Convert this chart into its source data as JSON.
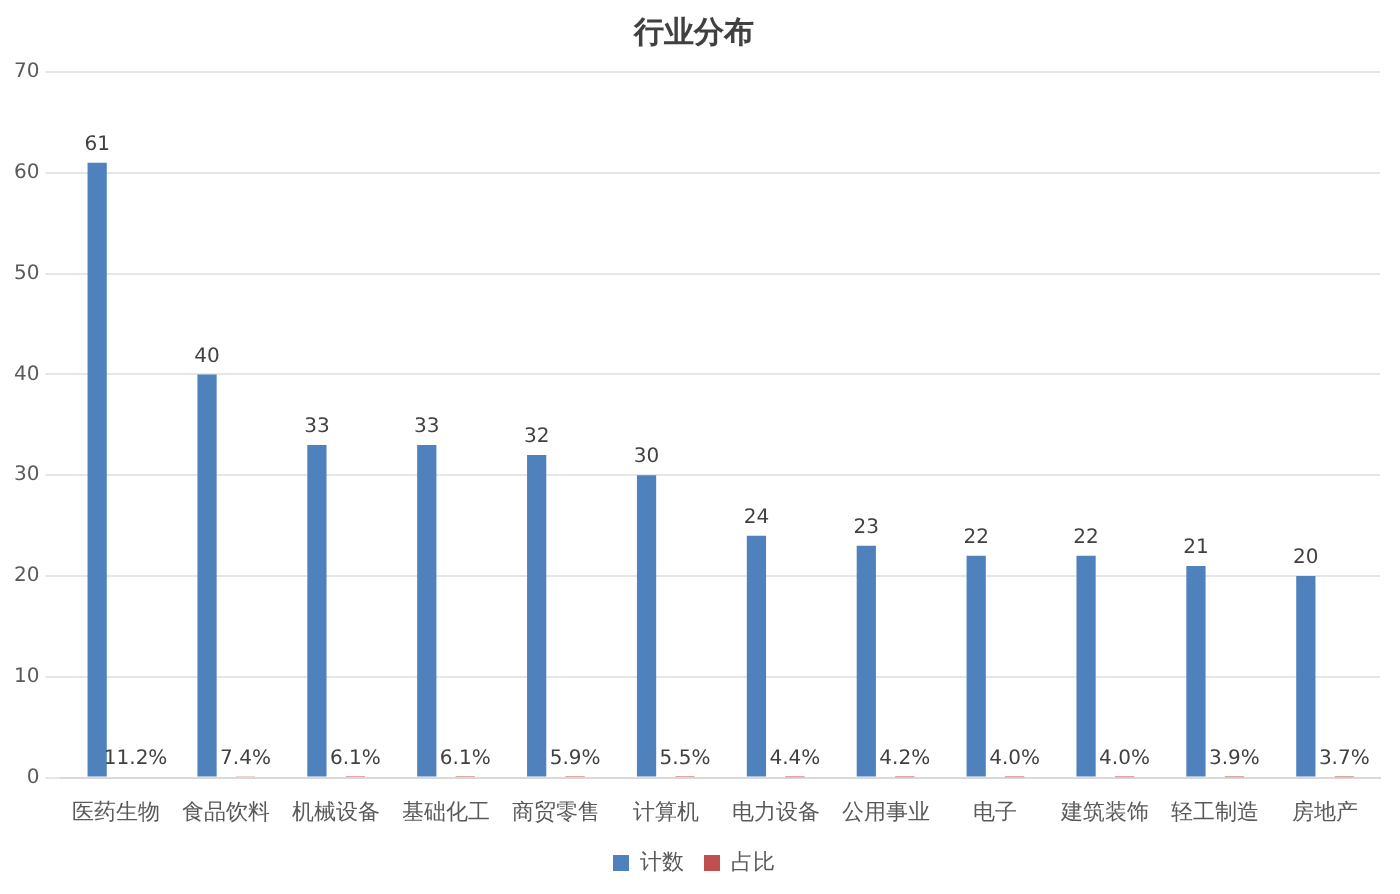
{
  "chart_data": {
    "type": "bar",
    "title": "行业分布",
    "categories": [
      "医药生物",
      "食品饮料",
      "机械设备",
      "基础化工",
      "商贸零售",
      "计算机",
      "电力设备",
      "公用事业",
      "电子",
      "建筑装饰",
      "轻工制造",
      "房地产"
    ],
    "series": [
      {
        "name": "计数",
        "color": "#4f81bd",
        "values": [
          61,
          40,
          33,
          33,
          32,
          30,
          24,
          23,
          22,
          22,
          21,
          20
        ],
        "value_labels": [
          "61",
          "40",
          "33",
          "33",
          "32",
          "30",
          "24",
          "23",
          "22",
          "22",
          "21",
          "20"
        ]
      },
      {
        "name": "占比",
        "color": "#c0504d",
        "values": [
          0.112,
          0.074,
          0.061,
          0.061,
          0.059,
          0.055,
          0.044,
          0.042,
          0.04,
          0.04,
          0.039,
          0.037
        ],
        "value_labels": [
          "11.2%",
          "7.4%",
          "6.1%",
          "6.1%",
          "5.9%",
          "5.5%",
          "4.4%",
          "4.2%",
          "4.0%",
          "4.0%",
          "3.9%",
          "3.7%"
        ]
      }
    ],
    "ylim": [
      0,
      70
    ],
    "yticks": [
      0,
      10,
      20,
      30,
      40,
      50,
      60,
      70
    ],
    "grid": "y",
    "legend": "bottom"
  }
}
